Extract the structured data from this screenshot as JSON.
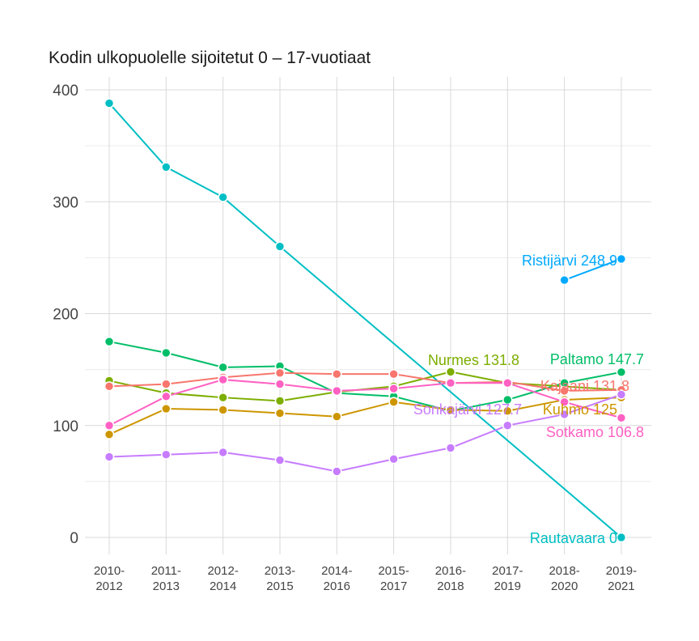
{
  "chart_data": {
    "type": "line",
    "title": "Kodin ulkopuolelle sijoitetut 0 – 17-vuotiaat",
    "xlabel": "",
    "ylabel": "",
    "ylim": [
      -20,
      405
    ],
    "yticks": [
      0,
      100,
      200,
      300,
      400
    ],
    "grid": true,
    "legend": "none (end-of-line labels)",
    "categories": [
      "2010-2012",
      "2011-2013",
      "2012-2014",
      "2013-2015",
      "2014-2016",
      "2015-2017",
      "2016-2018",
      "2017-2019",
      "2018-2020",
      "2019-2021"
    ],
    "category_lines": [
      [
        "2010-",
        "2012"
      ],
      [
        "2011-",
        "2013"
      ],
      [
        "2012-",
        "2014"
      ],
      [
        "2013-",
        "2015"
      ],
      [
        "2014-",
        "2016"
      ],
      [
        "2015-",
        "2017"
      ],
      [
        "2016-",
        "2018"
      ],
      [
        "2017-",
        "2019"
      ],
      [
        "2018-",
        "2020"
      ],
      [
        "2019-",
        "2021"
      ]
    ],
    "series": [
      {
        "name": "Rautavaara",
        "color": "#00BFC4",
        "label": "Rautavaara 0",
        "values": [
          388,
          331,
          304,
          260,
          null,
          null,
          null,
          null,
          null,
          0
        ]
      },
      {
        "name": "Ristijärvi",
        "color": "#00A9FF",
        "label": "Ristijärvi 248.9",
        "values": [
          null,
          null,
          null,
          null,
          null,
          null,
          null,
          null,
          230,
          248.9
        ]
      },
      {
        "name": "Paltamo",
        "color": "#00BE67",
        "label": "Paltamo 147.7",
        "values": [
          175,
          165,
          152,
          153,
          129,
          126,
          113,
          123,
          138,
          147.7
        ]
      },
      {
        "name": "Nurmes",
        "color": "#7CAE00",
        "label": "Nurmes 131.8",
        "values": [
          140,
          129,
          125,
          122,
          130,
          135,
          148,
          138,
          null,
          131.8
        ]
      },
      {
        "name": "Kajaani",
        "color": "#F8766D",
        "label": "Kajaani 131.8",
        "values": [
          135,
          137,
          143,
          147,
          146,
          146,
          138,
          139,
          131,
          131.8
        ]
      },
      {
        "name": "Kuhmo",
        "color": "#CD9600",
        "label": "Kuhmo 125",
        "values": [
          92,
          115,
          114,
          111,
          108,
          121,
          114,
          113,
          123,
          125
        ]
      },
      {
        "name": "Sonkajärvi",
        "color": "#C77CFF",
        "label": "Sonkajärvi 127.7",
        "values": [
          72,
          74,
          76,
          69,
          59,
          70,
          80,
          100,
          110,
          127.7
        ]
      },
      {
        "name": "Sotkamo",
        "color": "#FF61C3",
        "label": "Sotkamo 106.8",
        "values": [
          100,
          126,
          141,
          137,
          131,
          133,
          138,
          138,
          121,
          106.8
        ]
      }
    ]
  }
}
